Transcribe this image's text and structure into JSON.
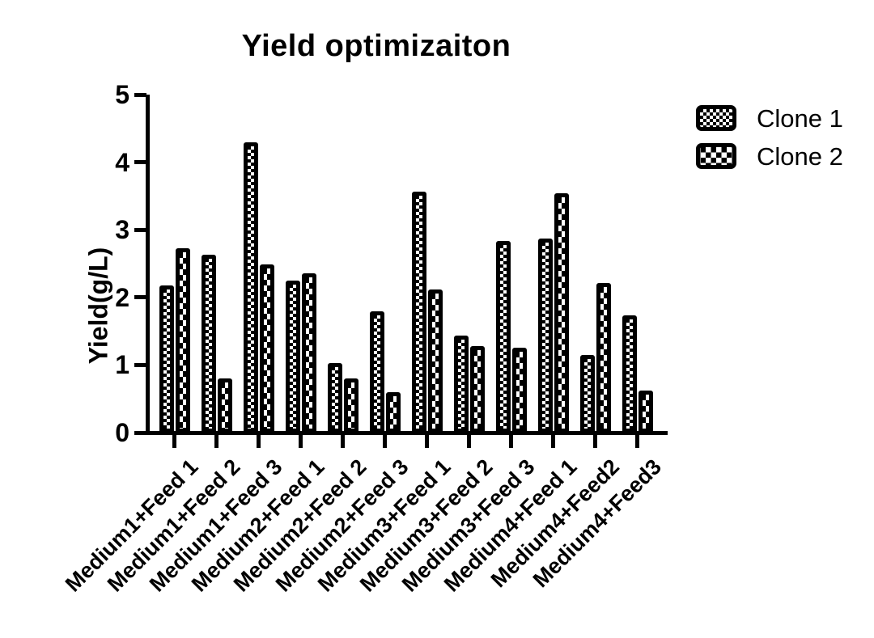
{
  "title": "Yield optimizaiton",
  "y_axis": {
    "label": "Yield(g/L)",
    "tick_labels": [
      "0",
      "1",
      "2",
      "3",
      "4",
      "5"
    ]
  },
  "legend": {
    "items": [
      {
        "label": "Clone 1",
        "swatch_icon": "fine-checkerboard-swatch"
      },
      {
        "label": "Clone 2",
        "swatch_icon": "coarse-checkerboard-swatch"
      }
    ]
  },
  "chart_data": {
    "type": "bar",
    "title": "Yield optimizaiton",
    "xlabel": "",
    "ylabel": "Yield(g/L)",
    "ylim": [
      0,
      5
    ],
    "yticks": [
      0,
      1,
      2,
      3,
      4,
      5
    ],
    "grid": false,
    "legend_position": "right-top",
    "bar_style": "black-and-white checkerboard patterned bars, thick black outlines",
    "colors": {
      "bar_fill": "#000000",
      "pattern": "#ffffff",
      "text": "#000000",
      "background": "#ffffff"
    },
    "categories": [
      "Medium1+Feed 1",
      "Medium1+Feed 2",
      "Medium1+Feed 3",
      "Medium2+Feed 1",
      "Medium2+Feed 2",
      "Medium2+Feed 3",
      "Medium3+Feed 1",
      "Medium3+Feed 2",
      "Medium3+Feed 3",
      "Medium4+Feed 1",
      "Medium4+Feed2",
      "Medium4+Feed3"
    ],
    "series": [
      {
        "name": "Clone 1",
        "values": [
          2.18,
          2.63,
          4.3,
          2.25,
          1.03,
          1.79,
          3.57,
          1.44,
          2.84,
          2.87,
          1.15,
          1.74
        ]
      },
      {
        "name": "Clone 2",
        "values": [
          2.73,
          0.8,
          2.49,
          2.36,
          0.8,
          0.6,
          2.12,
          1.28,
          1.26,
          3.54,
          2.21,
          0.62
        ]
      }
    ]
  }
}
